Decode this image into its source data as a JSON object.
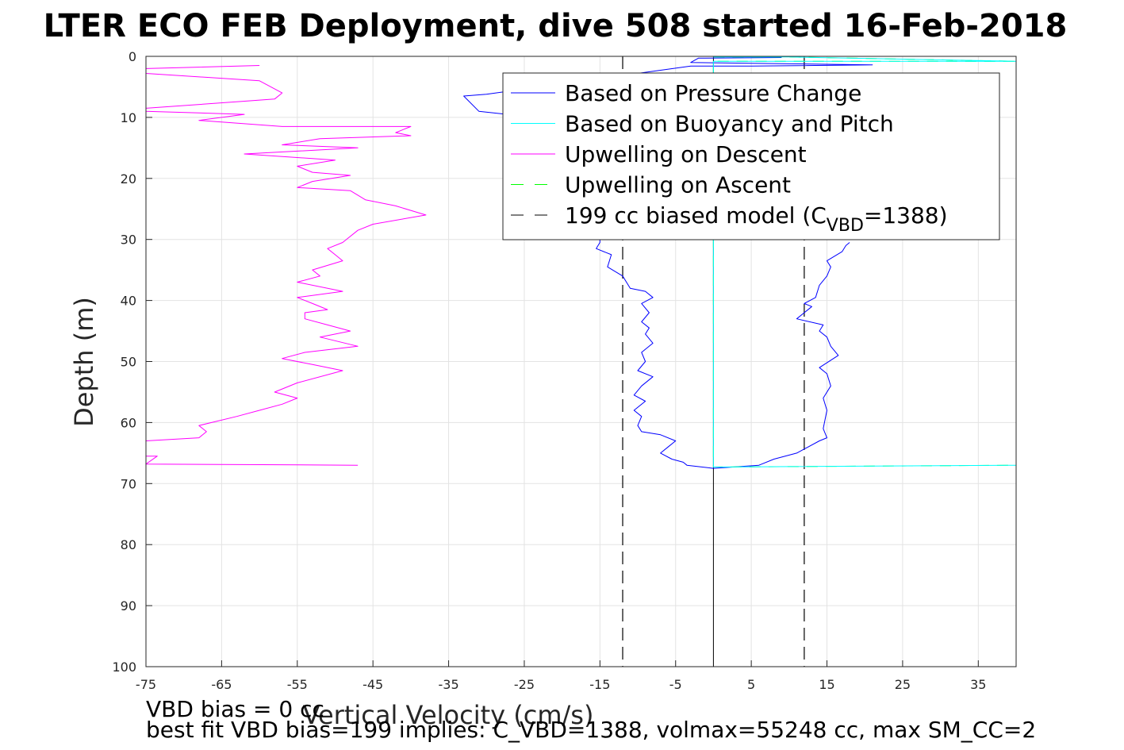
{
  "chart_data": {
    "type": "line",
    "title": "LTER ECO FEB Deployment, dive 508 started 16-Feb-2018",
    "xlabel": "Vertical Velocity (cm/s)",
    "ylabel": "Depth (m)",
    "xlim": [
      -75,
      40
    ],
    "ylim": [
      0,
      100
    ],
    "y_reversed": true,
    "grid": true,
    "xticks": [
      -75,
      -65,
      -55,
      -45,
      -35,
      -25,
      -15,
      -5,
      5,
      15,
      25,
      35
    ],
    "yticks": [
      0,
      10,
      20,
      30,
      40,
      50,
      60,
      70,
      80,
      90,
      100
    ],
    "legend_position": "top-right",
    "colors": {
      "pressure": "#0000ff",
      "buoyancy": "#00ffff",
      "upwelling_descent": "#ff00ff",
      "upwelling_ascent": "#00ff00",
      "model": "#000000"
    },
    "series": [
      {
        "name": "Based on Pressure Change",
        "key": "pressure",
        "style": "solid",
        "points": [
          [
            9,
            0.2
          ],
          [
            -2,
            0.3
          ],
          [
            -3,
            1.0
          ],
          [
            21,
            1.4
          ],
          [
            5,
            1.6
          ],
          [
            -3,
            1.6
          ],
          [
            -30,
            6.2
          ],
          [
            -33,
            6.5
          ],
          [
            -31,
            9.0
          ],
          [
            -20,
            10.5
          ],
          [
            -15,
            11.0
          ],
          [
            -15,
            30.5
          ],
          [
            -15.5,
            31.5
          ],
          [
            -13.5,
            32.5
          ],
          [
            -14,
            34.5
          ],
          [
            -12,
            36
          ],
          [
            -11,
            38
          ],
          [
            -9,
            38.5
          ],
          [
            -8,
            39.5
          ],
          [
            -9.5,
            40.5
          ],
          [
            -8.5,
            42
          ],
          [
            -9.5,
            43.5
          ],
          [
            -8.5,
            44.5
          ],
          [
            -9,
            45.5
          ],
          [
            -8,
            47
          ],
          [
            -9.5,
            48.5
          ],
          [
            -9,
            50
          ],
          [
            -10,
            51.5
          ],
          [
            -8,
            52.5
          ],
          [
            -9.5,
            54
          ],
          [
            -10.5,
            55.5
          ],
          [
            -9,
            56.5
          ],
          [
            -10.5,
            58
          ],
          [
            -9.5,
            59
          ],
          [
            -10,
            60.5
          ],
          [
            -9.5,
            61.5
          ],
          [
            -7,
            62
          ],
          [
            -5,
            63
          ],
          [
            -6,
            64
          ],
          [
            -7,
            65
          ],
          [
            -5.5,
            66
          ],
          [
            -4,
            66.5
          ],
          [
            -3.5,
            67
          ],
          [
            0,
            67.5
          ],
          [
            6,
            67
          ],
          [
            8,
            66
          ],
          [
            11,
            65
          ],
          [
            14,
            63
          ],
          [
            15,
            62.5
          ],
          [
            14.5,
            61
          ],
          [
            15,
            58
          ],
          [
            14.5,
            56
          ],
          [
            15.5,
            54
          ],
          [
            15,
            52
          ],
          [
            14,
            51
          ],
          [
            16.5,
            49
          ],
          [
            15.5,
            47.5
          ],
          [
            15,
            46
          ],
          [
            14,
            45
          ],
          [
            14.5,
            44
          ],
          [
            11,
            43
          ],
          [
            13,
            41
          ],
          [
            12,
            40.5
          ],
          [
            13.5,
            39.5
          ],
          [
            14,
            37.5
          ],
          [
            15,
            36
          ],
          [
            15.5,
            34.5
          ],
          [
            15,
            33.5
          ],
          [
            17,
            32
          ],
          [
            17.5,
            31
          ],
          [
            18,
            30.5
          ]
        ]
      },
      {
        "name": "Based on Buoyancy and Pitch",
        "key": "buoyancy",
        "style": "solid",
        "points": [
          [
            0,
            0.1
          ],
          [
            10,
            0.1
          ],
          [
            40,
            0.8
          ],
          [
            0,
            0.8
          ],
          [
            0,
            67.3
          ],
          [
            40,
            67.0
          ]
        ]
      },
      {
        "name": "Upwelling on Descent",
        "key": "upwelling_descent",
        "style": "solid",
        "points": [
          [
            -60,
            1.5
          ],
          [
            -75,
            2.0
          ],
          [
            -75,
            2.8
          ],
          [
            -60,
            4.0
          ],
          [
            -57,
            6.0
          ],
          [
            -58,
            7.0
          ],
          [
            -75,
            8.5
          ],
          [
            -75,
            9.0
          ],
          [
            -62,
            9.5
          ],
          [
            -68,
            10.5
          ],
          [
            -57,
            11.5
          ],
          [
            -40,
            11.5
          ],
          [
            -42,
            12.5
          ],
          [
            -40,
            13.0
          ],
          [
            -52,
            13.5
          ],
          [
            -57,
            14.5
          ],
          [
            -47,
            15.0
          ],
          [
            -62,
            16.0
          ],
          [
            -50,
            17.0
          ],
          [
            -55,
            18.0
          ],
          [
            -53,
            19.0
          ],
          [
            -48,
            19.5
          ],
          [
            -53,
            20.5
          ],
          [
            -55,
            21.5
          ],
          [
            -48,
            22.0
          ],
          [
            -46,
            23.5
          ],
          [
            -42,
            24.5
          ],
          [
            -38,
            26.0
          ],
          [
            -45,
            27.5
          ],
          [
            -47,
            28.5
          ],
          [
            -49,
            30.5
          ],
          [
            -51,
            31.5
          ],
          [
            -50,
            32.5
          ],
          [
            -49,
            33.5
          ],
          [
            -53,
            35.0
          ],
          [
            -52,
            36.0
          ],
          [
            -55,
            37.0
          ],
          [
            -49,
            38.5
          ],
          [
            -55,
            39.5
          ],
          [
            -53,
            40.5
          ],
          [
            -51,
            41.5
          ],
          [
            -54,
            42.0
          ],
          [
            -54,
            43.0
          ],
          [
            -51,
            44.0
          ],
          [
            -48,
            45.0
          ],
          [
            -52,
            46.0
          ],
          [
            -47,
            47.5
          ],
          [
            -54,
            48.5
          ],
          [
            -57,
            49.5
          ],
          [
            -53,
            50.5
          ],
          [
            -49,
            51.5
          ],
          [
            -55,
            53.5
          ],
          [
            -58,
            55.0
          ],
          [
            -55,
            56.0
          ],
          [
            -57,
            57.0
          ],
          [
            -60,
            58.0
          ],
          [
            -63,
            59.0
          ],
          [
            -68,
            60.5
          ],
          [
            -67,
            61.5
          ],
          [
            -68,
            62.5
          ],
          [
            -75,
            63.0
          ],
          [
            -75,
            65.5
          ],
          [
            -73.5,
            65.5
          ],
          [
            -75,
            66.8
          ],
          [
            -47,
            67.0
          ]
        ]
      },
      {
        "name": "Upwelling on Ascent",
        "key": "upwelling_ascent",
        "style": "dashed",
        "points": [
          [
            0,
            0.1
          ],
          [
            10,
            0.1
          ],
          [
            40,
            0.8
          ],
          [
            0,
            0.8
          ],
          [
            0,
            67.3
          ],
          [
            40,
            67.0
          ]
        ]
      },
      {
        "name": "199 cc biased model (C_VBD=1388)",
        "key": "model",
        "style": "dashed",
        "points": [
          [
            -12,
            0
          ],
          [
            -12,
            100
          ]
        ],
        "mirror_points": [
          [
            12,
            0
          ],
          [
            12,
            100
          ]
        ]
      },
      {
        "name": "",
        "key": "zero_line",
        "style": "solid",
        "points": [
          [
            0,
            0
          ],
          [
            0,
            100
          ]
        ]
      }
    ],
    "legend": [
      {
        "label": "Based on Pressure Change",
        "key": "pressure",
        "style": "solid"
      },
      {
        "label": "Based on Buoyancy and Pitch",
        "key": "buoyancy",
        "style": "solid"
      },
      {
        "label": "Upwelling on Descent",
        "key": "upwelling_descent",
        "style": "solid"
      },
      {
        "label": "Upwelling on Ascent",
        "key": "upwelling_ascent",
        "style": "dashed"
      },
      {
        "label_main": "199 cc biased model (C",
        "label_sub": "VBD",
        "label_tail": "=1388)",
        "key": "model",
        "style": "dashed"
      }
    ],
    "notes": [
      "VBD bias = 0 cc",
      "best fit VBD bias=199 implies: C_VBD=1388, volmax=55248 cc, max SM_CC=2"
    ]
  }
}
